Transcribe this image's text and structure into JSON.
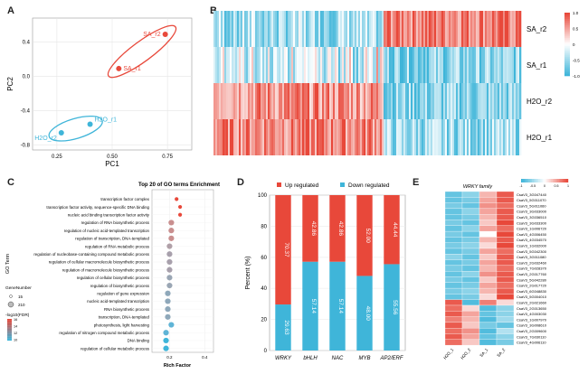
{
  "panels": {
    "a": "A",
    "b": "B",
    "c": "C",
    "d": "D",
    "e": "E"
  },
  "panel_a": {
    "xlabel": "PC1",
    "ylabel": "PC2",
    "xticks": [
      0.25,
      0.5,
      0.75
    ],
    "yticks": [
      0.4,
      0.0,
      -0.4,
      -0.8
    ],
    "xticklabels": [
      "0.25",
      "0.50",
      "0.75"
    ],
    "yticklabels": [
      "0.4",
      "0.0",
      "-0.4",
      "-0.8"
    ],
    "xlim": [
      0.14,
      0.86
    ],
    "ylim": [
      -0.86,
      0.68
    ],
    "points": [
      {
        "label": "SA_r2",
        "x": 0.74,
        "y": 0.49,
        "color": "#e8483a"
      },
      {
        "label": "SA_r1",
        "x": 0.53,
        "y": 0.09,
        "color": "#e8483a"
      },
      {
        "label": "H2O_r1",
        "x": 0.4,
        "y": -0.56,
        "color": "#3fb5d9"
      },
      {
        "label": "H2O_r2",
        "x": 0.27,
        "y": -0.66,
        "color": "#3fb5d9"
      }
    ]
  },
  "panel_b": {
    "rows": [
      "SA_r2",
      "SA_r1",
      "H2O_r2",
      "H2O_r1"
    ],
    "legend_ticks": [
      "1.0",
      "0.5",
      "0",
      "-0.5",
      "-1.0"
    ],
    "split_fraction": 0.55
  },
  "panel_c": {
    "title": "Top 20 of GO terms Enrichment",
    "xlabel": "Rich Factor",
    "ylabel": "GO Term",
    "xticks": [
      0.2,
      0.4
    ],
    "xticklabels": [
      "0.2",
      "0.4"
    ],
    "terms": [
      {
        "name": "transcription factor complex",
        "rich": 0.24,
        "color": "#e8483a"
      },
      {
        "name": "transcription factor activity, sequence-specific DNA binding",
        "rich": 0.26,
        "color": "#e8483a"
      },
      {
        "name": "nucleic acid binding transcription factor activity",
        "rich": 0.26,
        "color": "#e8483a"
      },
      {
        "name": "regulation of RNA biosynthetic process",
        "rich": 0.21,
        "color": "#c98f8f"
      },
      {
        "name": "regulation of nucleic acid-templated transcription",
        "rich": 0.21,
        "color": "#c98f8f"
      },
      {
        "name": "regulation of transcription, DNA-templated",
        "rich": 0.21,
        "color": "#c98f8f"
      },
      {
        "name": "regulation of RNA metabolic process",
        "rich": 0.2,
        "color": "#b0a0a8"
      },
      {
        "name": "regulation of nucleobase-containing compound metabolic process",
        "rich": 0.2,
        "color": "#a8a0ac"
      },
      {
        "name": "regulation of cellular macromolecule biosynthetic process",
        "rich": 0.2,
        "color": "#a8a0ac"
      },
      {
        "name": "regulation of macromolecule biosynthetic process",
        "rich": 0.2,
        "color": "#a8a0ac"
      },
      {
        "name": "regulation of cellular biosynthetic process",
        "rich": 0.2,
        "color": "#9aa6b4"
      },
      {
        "name": "regulation of biosynthetic process",
        "rich": 0.2,
        "color": "#9aa6b4"
      },
      {
        "name": "regulation of gene expression",
        "rich": 0.19,
        "color": "#8fa8ba"
      },
      {
        "name": "nucleic acid-templated transcription",
        "rich": 0.19,
        "color": "#8fa8ba"
      },
      {
        "name": "RNA biosynthetic process",
        "rich": 0.19,
        "color": "#8fa8ba"
      },
      {
        "name": "transcription, DNA-templated",
        "rich": 0.19,
        "color": "#8fa8ba"
      },
      {
        "name": "photosynthesis, light harvesting",
        "rich": 0.21,
        "color": "#5fb4d6"
      },
      {
        "name": "regulation of nitrogen compound metabolic process",
        "rich": 0.18,
        "color": "#5fb4d6"
      },
      {
        "name": "DNA binding",
        "rich": 0.18,
        "color": "#3fb5d9"
      },
      {
        "name": "regulation of cellular metabolic process",
        "rich": 0.18,
        "color": "#3fb5d9"
      }
    ],
    "legend_size_title": "GeneNumber",
    "legend_sizes": [
      "15",
      "210"
    ],
    "legend_color_title": "-log10(FDR)",
    "legend_color_ticks": [
      "16",
      "14",
      "12",
      "10"
    ]
  },
  "chart_data": {
    "type": "bar",
    "categories": [
      "WRKY",
      "bHLH",
      "NAC",
      "MYB",
      "AP2/ERF"
    ],
    "ylabel": "Percent (%)",
    "ylim": [
      0,
      100
    ],
    "yticks": [
      "0",
      "20",
      "40",
      "60",
      "80",
      "100"
    ],
    "series": [
      {
        "name": "Down regulated",
        "values": [
          29.63,
          57.14,
          57.14,
          48.0,
          55.56
        ],
        "labels": [
          "29.63",
          "57.14",
          "57.14",
          "48.00",
          "55.56"
        ],
        "color": "#3fb5d9"
      },
      {
        "name": "Up regulated",
        "values": [
          70.37,
          42.86,
          42.86,
          52.0,
          44.44
        ],
        "labels": [
          "70.37",
          "42.86",
          "42.86",
          "52.00",
          "44.44"
        ],
        "color": "#e8483a"
      }
    ],
    "legend_placement": "top"
  },
  "panel_e": {
    "title": "WRKY family",
    "legend_ticks": [
      "-1",
      "-0.5",
      "0",
      "0.5",
      "1"
    ],
    "columns": [
      "H2O_1",
      "H2O_2",
      "SA_1",
      "SA_2"
    ],
    "genes": [
      "CsaV3_3G047440",
      "CsaV3_5G011070",
      "CsaV3_5G011060",
      "CsaV3_3G033000",
      "CsaV3_3G036510",
      "CsaV3_3G033300",
      "CsaV3_1G006720",
      "CsaV3_4G006450",
      "CsaV3_4G034570",
      "CsaV3_1G032000",
      "CsaV3_5G042300",
      "CsaV3_3G011080",
      "CsaV3_2G032460",
      "CsaV3_7G028370",
      "CsaV3_2G017760",
      "CsaV3_5G042280",
      "CsaV3_2G017720",
      "CsaV3_6G048830",
      "CsaV3_5G004010",
      "CsaV3_2G021660",
      "CsaV3_2G013650",
      "CsaV3_4G003030",
      "CsaV3_1G007970",
      "CsaV3_3G008610",
      "CsaV3_2G009600",
      "CsaV3_7G030110",
      "CsaV3_4G006110"
    ],
    "values": [
      [
        -0.8,
        -0.6,
        0.4,
        0.9
      ],
      [
        -0.8,
        -0.7,
        0.5,
        0.9
      ],
      [
        -0.7,
        -0.8,
        0.6,
        0.8
      ],
      [
        -0.8,
        -0.6,
        0.5,
        0.9
      ],
      [
        -0.8,
        -0.7,
        0.4,
        0.9
      ],
      [
        -0.7,
        -0.8,
        0.3,
        1.0
      ],
      [
        -0.8,
        -0.6,
        0.5,
        0.8
      ],
      [
        -0.7,
        -0.8,
        0.0,
        1.0
      ],
      [
        -0.8,
        -0.7,
        0.4,
        0.9
      ],
      [
        -0.7,
        -0.6,
        0.2,
        1.0
      ],
      [
        -0.8,
        -0.7,
        0.5,
        0.8
      ],
      [
        -0.6,
        -0.8,
        0.3,
        0.9
      ],
      [
        -0.8,
        -0.7,
        0.5,
        0.9
      ],
      [
        -0.7,
        -0.8,
        0.4,
        0.8
      ],
      [
        -0.8,
        -0.6,
        0.6,
        0.9
      ],
      [
        -0.7,
        -0.8,
        0.3,
        0.9
      ],
      [
        -0.8,
        -0.7,
        0.5,
        0.8
      ],
      [
        -0.7,
        -0.6,
        0.4,
        0.9
      ],
      [
        -0.8,
        -0.7,
        0.2,
        1.0
      ],
      [
        0.9,
        -0.9,
        0.7,
        0.2
      ],
      [
        0.8,
        0.2,
        -0.9,
        -0.6
      ],
      [
        0.9,
        0.5,
        -0.8,
        -0.6
      ],
      [
        0.7,
        0.4,
        -0.9,
        -0.5
      ],
      [
        0.9,
        0.3,
        -0.7,
        -0.8
      ],
      [
        0.8,
        0.6,
        -0.9,
        -0.4
      ],
      [
        0.9,
        0.5,
        -0.8,
        -0.6
      ],
      [
        0.8,
        0.3,
        -0.9,
        -0.7
      ]
    ]
  },
  "colors": {
    "red": "#e8483a",
    "blue": "#3fb5d9",
    "white": "#ffffff"
  }
}
